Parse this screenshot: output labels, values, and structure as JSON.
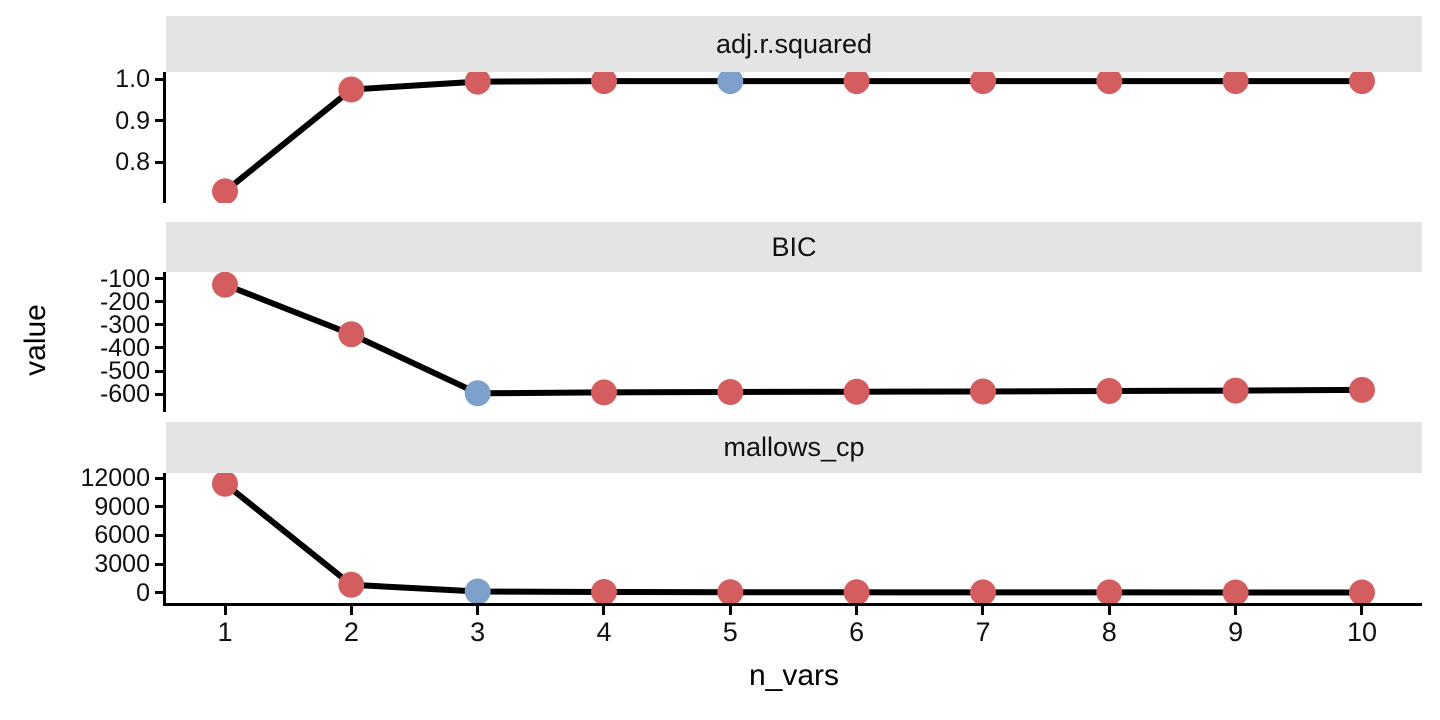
{
  "figure": {
    "y_axis_title": "value",
    "x_axis_title": "n_vars",
    "colors": {
      "point": "#d45d60",
      "highlight_point": "#7da1ca",
      "line": "#000000",
      "strip_bg": "#e4e4e4",
      "axis": "#000000"
    }
  },
  "chart_data": {
    "type": "line",
    "description": "Faceted model-selection criteria vs number of variables; one point per n_vars, best model per criterion highlighted in blue",
    "x": [
      1,
      2,
      3,
      4,
      5,
      6,
      7,
      8,
      9,
      10
    ],
    "x_tick_labels": [
      "1",
      "2",
      "3",
      "4",
      "5",
      "6",
      "7",
      "8",
      "9",
      "10"
    ],
    "xlabel": "n_vars",
    "ylabel": "value",
    "xlim": [
      0.53,
      10.47
    ],
    "grid": "off",
    "legend": "none",
    "facets": [
      {
        "title": "adj.r.squared",
        "values": [
          0.73,
          0.975,
          0.994,
          0.995,
          0.995,
          0.995,
          0.995,
          0.995,
          0.995,
          0.995
        ],
        "highlight_x": 5,
        "ylim": [
          0.702,
          1.017
        ],
        "y_ticks": [
          {
            "label": "1.0",
            "value": 1.0
          },
          {
            "label": "0.9",
            "value": 0.9
          },
          {
            "label": "0.8",
            "value": 0.8
          }
        ]
      },
      {
        "title": "BIC",
        "values": [
          -125,
          -340,
          -597,
          -593,
          -591,
          -590,
          -589,
          -587,
          -585,
          -582
        ],
        "highlight_x": 3,
        "ylim": [
          -678,
          -70
        ],
        "y_ticks": [
          {
            "label": "-100",
            "value": -100
          },
          {
            "label": "-200",
            "value": -200
          },
          {
            "label": "-300",
            "value": -300
          },
          {
            "label": "-400",
            "value": -400
          },
          {
            "label": "-500",
            "value": -500
          },
          {
            "label": "-600",
            "value": -600
          }
        ]
      },
      {
        "title": "mallows_cp",
        "values": [
          11400,
          840,
          140,
          80,
          60,
          50,
          45,
          40,
          35,
          30
        ],
        "highlight_x": 3,
        "ylim": [
          -1066,
          12523
        ],
        "y_ticks": [
          {
            "label": "12000",
            "value": 12000
          },
          {
            "label": "9000",
            "value": 9000
          },
          {
            "label": "6000",
            "value": 6000
          },
          {
            "label": "3000",
            "value": 3000
          },
          {
            "label": "0",
            "value": 0
          }
        ]
      }
    ]
  }
}
